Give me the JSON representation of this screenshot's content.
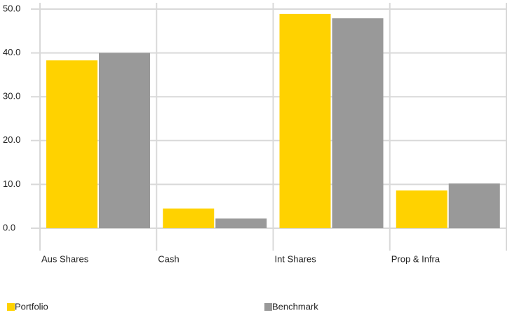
{
  "chart_data": {
    "type": "bar",
    "categories": [
      "Aus Shares",
      "Cash",
      "Int Shares",
      "Prop & Infra"
    ],
    "series": [
      {
        "name": "Portfolio",
        "color": "#ffd200",
        "values": [
          38.3,
          4.5,
          48.9,
          8.6
        ]
      },
      {
        "name": "Benchmark",
        "color": "#999999",
        "values": [
          40.0,
          2.2,
          47.9,
          10.2
        ]
      }
    ],
    "ylim": [
      0,
      50
    ],
    "yticks": [
      {
        "value": 0,
        "label": "0.0"
      },
      {
        "value": 10,
        "label": "10.0"
      },
      {
        "value": 20,
        "label": "20.0"
      },
      {
        "value": 30,
        "label": "30.0"
      },
      {
        "value": 40,
        "label": "40.0"
      },
      {
        "value": 50,
        "label": "50.0"
      }
    ],
    "grid": true
  }
}
